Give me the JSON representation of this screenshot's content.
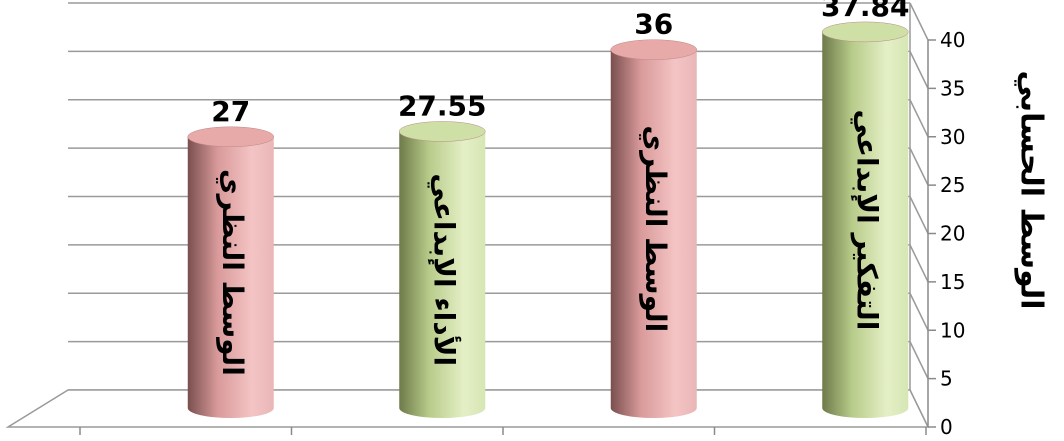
{
  "chart_data": {
    "type": "bar",
    "style": "3d-cylinder",
    "ylabel": "الوسط الحسابي",
    "ylim": [
      0,
      40
    ],
    "yticks": [
      0,
      5,
      10,
      15,
      20,
      25,
      30,
      35,
      40
    ],
    "grid": true,
    "categories": [
      "الوسط النظري",
      "الأداء الإبداعي",
      "الوسط النظري",
      "التفكير الإبداعي"
    ],
    "values": [
      27,
      27.55,
      36,
      37.84
    ],
    "value_labels": [
      "27",
      "27.55",
      "36",
      "37.84"
    ],
    "bar_colors": [
      "#e8a9a9",
      "#cfe0a6",
      "#e8a9a9",
      "#cfe0a6"
    ]
  }
}
